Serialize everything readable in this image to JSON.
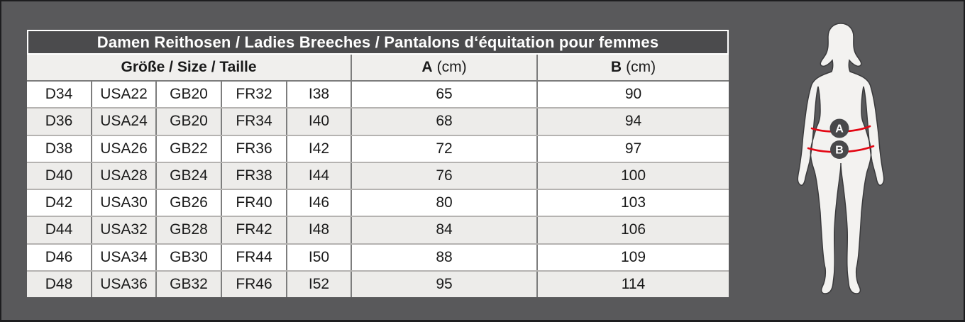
{
  "title": "Damen Reithosen / Ladies Breeches / Pantalons d‘équitation pour femmes",
  "header": {
    "size_group": "Größe / Size / Taille",
    "a_label": "A",
    "a_unit": "(cm)",
    "b_label": "B",
    "b_unit": "(cm)"
  },
  "figure": {
    "marker_a": "A",
    "marker_b": "B"
  },
  "colors": {
    "page_bg": "#59595b",
    "title_bg": "#4b4b4d",
    "header_bg": "#f0efed",
    "stripe": "#edecea",
    "border_dark": "#7d7d7d",
    "border_light": "#b5b3b1",
    "red": "#e30613",
    "silhouette": "#f3f2f0",
    "silhouette_outline": "#3a3a3c",
    "badge": "#48484a"
  },
  "chart_data": {
    "type": "table",
    "title": "Damen Reithosen / Ladies Breeches / Pantalons d‘équitation pour femmes",
    "column_groups": [
      {
        "label": "Größe / Size / Taille",
        "span": 5
      },
      {
        "label": "A (cm)",
        "span": 1
      },
      {
        "label": "B (cm)",
        "span": 1
      }
    ],
    "size_systems": [
      "D",
      "USA",
      "GB",
      "FR",
      "I"
    ],
    "rows": [
      [
        "D34",
        "USA22",
        "GB20",
        "FR32",
        "I38",
        "65",
        "90"
      ],
      [
        "D36",
        "USA24",
        "GB20",
        "FR34",
        "I40",
        "68",
        "94"
      ],
      [
        "D38",
        "USA26",
        "GB22",
        "FR36",
        "I42",
        "72",
        "97"
      ],
      [
        "D40",
        "USA28",
        "GB24",
        "FR38",
        "I44",
        "76",
        "100"
      ],
      [
        "D42",
        "USA30",
        "GB26",
        "FR40",
        "I46",
        "80",
        "103"
      ],
      [
        "D44",
        "USA32",
        "GB28",
        "FR42",
        "I48",
        "84",
        "106"
      ],
      [
        "D46",
        "USA34",
        "GB30",
        "FR44",
        "I50",
        "88",
        "109"
      ],
      [
        "D48",
        "USA36",
        "GB32",
        "FR46",
        "I52",
        "95",
        "114"
      ]
    ],
    "row_striping": true,
    "figure_markers": [
      "A",
      "B"
    ]
  }
}
